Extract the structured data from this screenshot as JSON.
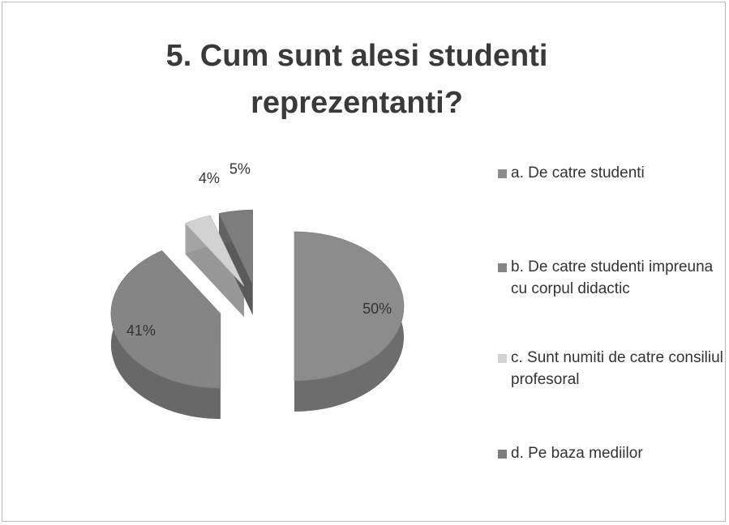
{
  "chart_data": {
    "type": "pie",
    "title": "5. Cum sunt alesi studenti reprezentanti?",
    "categories": [
      "a. De catre studenti",
      "b. De catre studenti impreuna cu corpul didactic",
      "c. Sunt numiti de catre consiliul profesoral",
      "d. Pe baza mediilor"
    ],
    "values": [
      50,
      41,
      4,
      5
    ],
    "value_labels": [
      "50%",
      "41%",
      "4%",
      "5%"
    ],
    "colors": [
      "#8c8c8c",
      "#858585",
      "#d2d2d2",
      "#7d7d7d"
    ],
    "legend": "right"
  }
}
